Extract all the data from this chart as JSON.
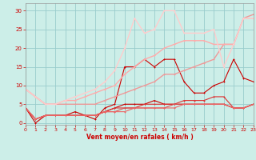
{
  "xlabel": "Vent moyen/en rafales ( km/h )",
  "xlim": [
    0,
    23
  ],
  "ylim": [
    -0.5,
    32
  ],
  "xticks": [
    0,
    1,
    2,
    3,
    4,
    5,
    6,
    7,
    8,
    9,
    10,
    11,
    12,
    13,
    14,
    15,
    16,
    17,
    18,
    19,
    20,
    21,
    22,
    23
  ],
  "yticks": [
    0,
    5,
    10,
    15,
    20,
    25,
    30
  ],
  "bg_color": "#cceee8",
  "grid_color": "#99cccc",
  "lines": [
    {
      "x": [
        0,
        1,
        2,
        3,
        4,
        5,
        6,
        7,
        8,
        9,
        10,
        11,
        12,
        13,
        14,
        15,
        16,
        17,
        18,
        19,
        20,
        21,
        22,
        23
      ],
      "y": [
        4,
        0,
        2,
        2,
        2,
        2,
        2,
        1,
        4,
        5,
        15,
        15,
        17,
        15,
        17,
        17,
        11,
        8,
        8,
        10,
        11,
        17,
        12,
        11
      ],
      "color": "#cc0000",
      "lw": 0.8,
      "marker": "+"
    },
    {
      "x": [
        0,
        1,
        2,
        3,
        4,
        5,
        6,
        7,
        8,
        9,
        10,
        11,
        12,
        13,
        14,
        15,
        16,
        17,
        18,
        19,
        20,
        21,
        22,
        23
      ],
      "y": [
        4,
        1,
        2,
        2,
        2,
        3,
        2,
        2,
        3,
        4,
        5,
        5,
        5,
        6,
        5,
        5,
        5,
        5,
        5,
        5,
        5,
        4,
        4,
        5
      ],
      "color": "#cc0000",
      "lw": 0.8,
      "marker": "+"
    },
    {
      "x": [
        0,
        1,
        2,
        3,
        4,
        5,
        6,
        7,
        8,
        9,
        10,
        11,
        12,
        13,
        14,
        15,
        16,
        17,
        18,
        19,
        20,
        21,
        22,
        23
      ],
      "y": [
        4,
        1,
        2,
        2,
        2,
        2,
        2,
        2,
        3,
        4,
        4,
        4,
        5,
        5,
        5,
        5,
        6,
        6,
        6,
        7,
        7,
        4,
        4,
        5
      ],
      "color": "#dd3333",
      "lw": 0.8,
      "marker": "+"
    },
    {
      "x": [
        0,
        1,
        2,
        3,
        4,
        5,
        6,
        7,
        8,
        9,
        10,
        11,
        12,
        13,
        14,
        15,
        16,
        17,
        18,
        19,
        20,
        21,
        22,
        23
      ],
      "y": [
        4,
        1,
        2,
        2,
        2,
        2,
        2,
        2,
        3,
        3,
        4,
        4,
        4,
        4,
        4,
        5,
        5,
        5,
        5,
        5,
        5,
        4,
        4,
        5
      ],
      "color": "#dd5555",
      "lw": 0.8,
      "marker": "+"
    },
    {
      "x": [
        0,
        1,
        2,
        3,
        4,
        5,
        6,
        7,
        8,
        9,
        10,
        11,
        12,
        13,
        14,
        15,
        16,
        17,
        18,
        19,
        20,
        21,
        22,
        23
      ],
      "y": [
        4,
        1,
        2,
        2,
        2,
        2,
        2,
        2,
        3,
        3,
        3,
        4,
        4,
        4,
        4,
        4,
        5,
        5,
        5,
        5,
        5,
        4,
        4,
        5
      ],
      "color": "#ee6666",
      "lw": 0.8,
      "marker": "+"
    },
    {
      "x": [
        0,
        1,
        2,
        3,
        4,
        5,
        6,
        7,
        8,
        9,
        10,
        11,
        12,
        13,
        14,
        15,
        16,
        17,
        18,
        19,
        20,
        21,
        22,
        23
      ],
      "y": [
        9,
        7,
        5,
        5,
        5,
        5,
        5,
        5,
        6,
        7,
        8,
        9,
        10,
        11,
        13,
        13,
        14,
        15,
        16,
        17,
        21,
        21,
        28,
        29
      ],
      "color": "#ee9999",
      "lw": 1.0,
      "marker": "+"
    },
    {
      "x": [
        0,
        1,
        2,
        3,
        4,
        5,
        6,
        7,
        8,
        9,
        10,
        11,
        12,
        13,
        14,
        15,
        16,
        17,
        18,
        19,
        20,
        21,
        22,
        23
      ],
      "y": [
        9,
        7,
        5,
        5,
        6,
        6,
        7,
        8,
        9,
        10,
        13,
        15,
        17,
        18,
        20,
        21,
        22,
        22,
        22,
        21,
        21,
        21,
        28,
        28
      ],
      "color": "#ffaaaa",
      "lw": 1.0,
      "marker": "+"
    },
    {
      "x": [
        0,
        1,
        2,
        3,
        4,
        5,
        6,
        7,
        8,
        9,
        10,
        11,
        12,
        13,
        14,
        15,
        16,
        17,
        18,
        19,
        20,
        21,
        22,
        23
      ],
      "y": [
        9,
        7,
        5,
        5,
        6,
        7,
        8,
        9,
        11,
        14,
        20,
        28,
        24,
        25,
        30,
        30,
        24,
        24,
        24,
        25,
        15,
        21,
        28,
        28
      ],
      "color": "#ffcccc",
      "lw": 1.0,
      "marker": "+"
    }
  ]
}
